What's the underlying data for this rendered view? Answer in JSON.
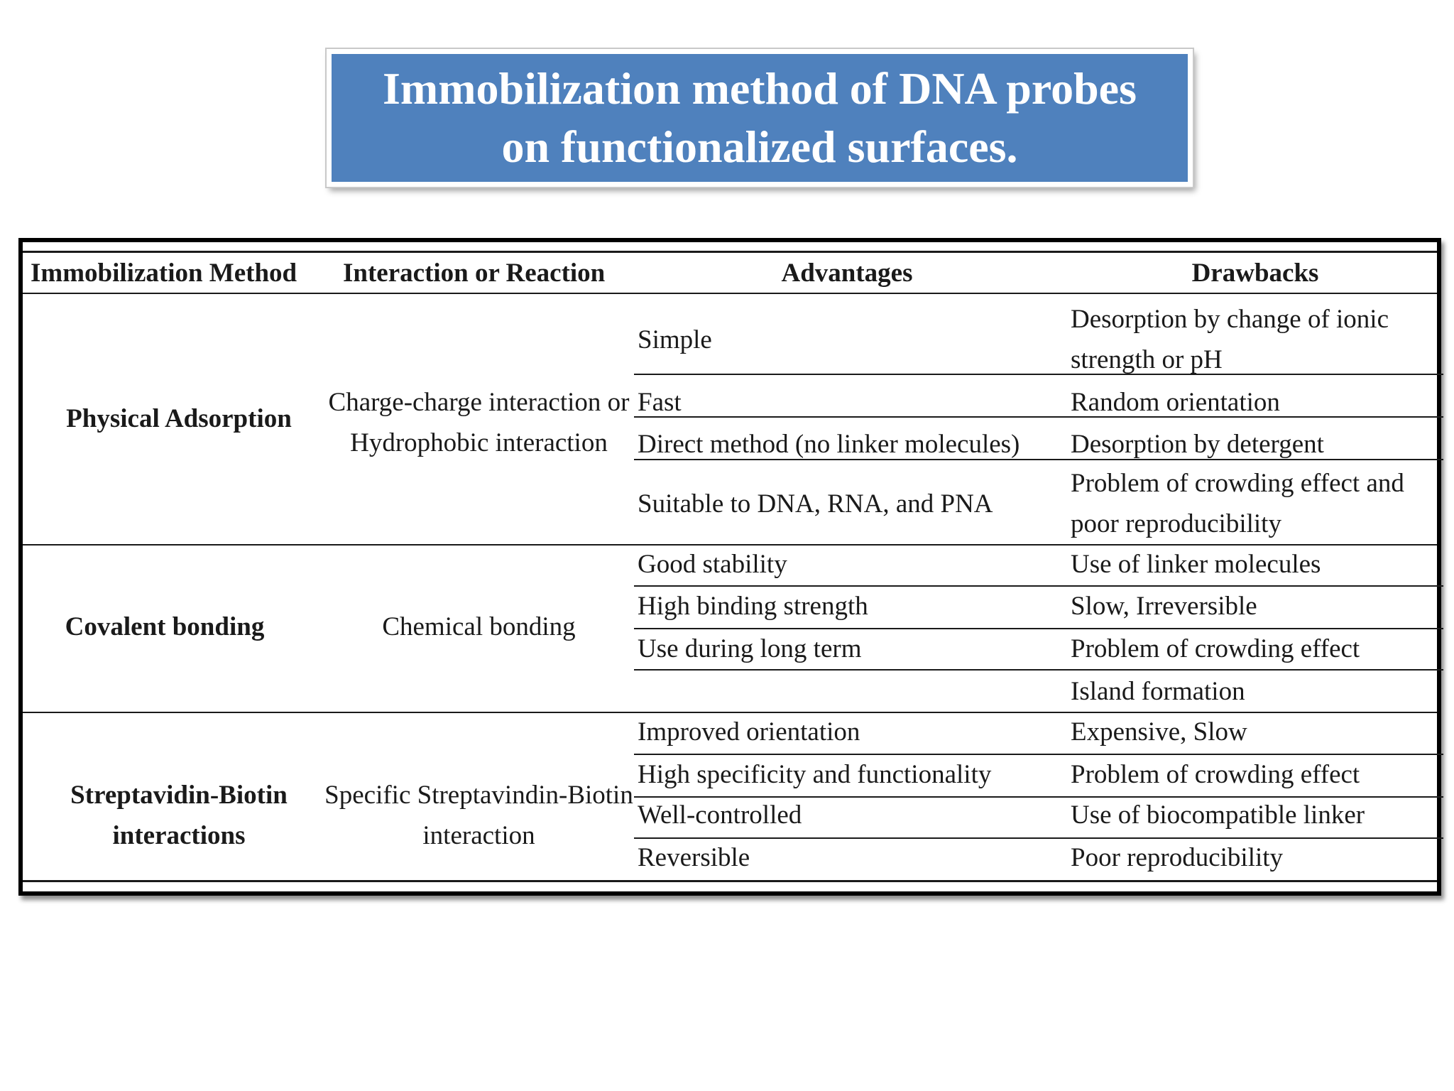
{
  "title": {
    "line1": "Immobilization method of DNA probes",
    "line2": "on functionalized surfaces."
  },
  "table": {
    "headers": {
      "method": "Immobilization Method",
      "interaction": "Interaction or Reaction",
      "advantages": "Advantages",
      "drawbacks": "Drawbacks"
    },
    "rows": [
      {
        "method": [
          "Physical Adsorption"
        ],
        "interaction": [
          "Charge-charge interaction or",
          "Hydrophobic interaction"
        ],
        "advantages": [
          "Simple",
          "Fast",
          "Direct method (no linker molecules)",
          "Suitable to DNA, RNA, and PNA"
        ],
        "drawbacks": [
          [
            "Desorption by change of ionic",
            "strength or pH"
          ],
          [
            "Random orientation"
          ],
          [
            "Desorption by detergent"
          ],
          [
            "Problem of crowding effect and",
            "poor reproducibility"
          ]
        ]
      },
      {
        "method": [
          "Covalent bonding"
        ],
        "interaction": [
          "Chemical bonding"
        ],
        "advantages": [
          "Good stability",
          "High binding strength",
          "Use during long term"
        ],
        "drawbacks": [
          [
            "Use of linker molecules"
          ],
          [
            "Slow, Irreversible"
          ],
          [
            "Problem of crowding effect"
          ],
          [
            "Island formation"
          ]
        ]
      },
      {
        "method": [
          "Streptavidin-Biotin",
          "interactions"
        ],
        "interaction": [
          "Specific Streptavindin-Biotin",
          "interaction"
        ],
        "advantages": [
          "Improved orientation",
          "High specificity and functionality",
          "Well-controlled",
          "Reversible"
        ],
        "drawbacks": [
          [
            "Expensive, Slow"
          ],
          [
            "Problem of crowding effect"
          ],
          [
            "Use of biocompatible linker"
          ],
          [
            "Poor reproducibility"
          ]
        ]
      }
    ]
  }
}
